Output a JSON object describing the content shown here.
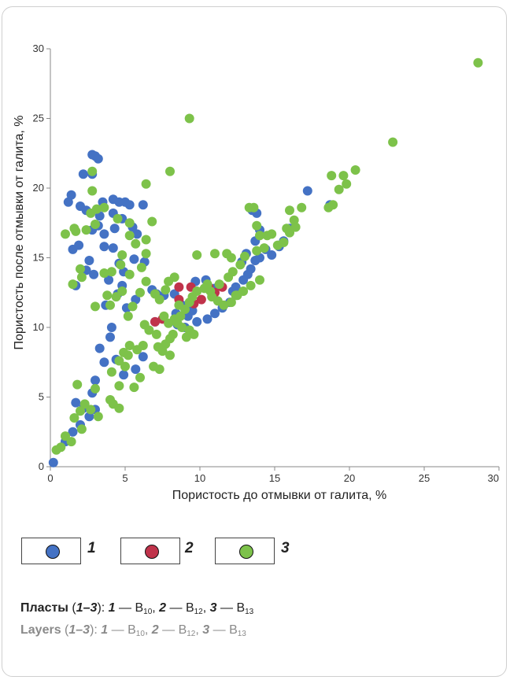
{
  "chart_data": {
    "type": "scatter",
    "xlabel": "Пористость до отмывки от галита, %",
    "ylabel": "Пористость после отмывки от галита, %",
    "xlim": [
      0,
      30
    ],
    "ylim": [
      0,
      30
    ],
    "xticks": [
      "0",
      "5",
      "10",
      "15",
      "20",
      "25",
      "30"
    ],
    "yticks": [
      "0",
      "5",
      "10",
      "15",
      "20",
      "25",
      "30"
    ],
    "grid": false,
    "series": [
      {
        "name": "1",
        "color": "#4472c4",
        "points": [
          [
            0.2,
            0.3
          ],
          [
            1.0,
            1.8
          ],
          [
            1.5,
            2.5
          ],
          [
            2.0,
            3.0
          ],
          [
            1.7,
            4.6
          ],
          [
            2.2,
            4.2
          ],
          [
            2.6,
            3.6
          ],
          [
            3.0,
            4.1
          ],
          [
            2.8,
            5.3
          ],
          [
            3.0,
            6.2
          ],
          [
            3.6,
            7.5
          ],
          [
            3.3,
            8.5
          ],
          [
            4.1,
            10.0
          ],
          [
            4.0,
            9.3
          ],
          [
            3.7,
            11.6
          ],
          [
            4.5,
            12.4
          ],
          [
            4.8,
            13.0
          ],
          [
            5.1,
            11.4
          ],
          [
            4.4,
            7.7
          ],
          [
            4.9,
            6.6
          ],
          [
            5.7,
            7.0
          ],
          [
            6.2,
            7.9
          ],
          [
            2.8,
            22.4
          ],
          [
            3.0,
            22.3
          ],
          [
            3.2,
            22.1
          ],
          [
            2.2,
            21.0
          ],
          [
            2.8,
            21.0
          ],
          [
            1.4,
            19.5
          ],
          [
            1.2,
            19.0
          ],
          [
            2.0,
            18.7
          ],
          [
            2.4,
            18.4
          ],
          [
            3.3,
            18.0
          ],
          [
            3.5,
            19.0
          ],
          [
            4.2,
            19.2
          ],
          [
            4.6,
            19.0
          ],
          [
            5.0,
            19.0
          ],
          [
            5.3,
            18.8
          ],
          [
            6.2,
            18.8
          ],
          [
            4.2,
            18.2
          ],
          [
            4.8,
            17.8
          ],
          [
            3.2,
            17.3
          ],
          [
            2.8,
            17.0
          ],
          [
            3.6,
            16.7
          ],
          [
            4.3,
            17.1
          ],
          [
            5.5,
            17.2
          ],
          [
            5.8,
            16.7
          ],
          [
            1.5,
            15.6
          ],
          [
            1.9,
            15.9
          ],
          [
            2.6,
            14.8
          ],
          [
            2.4,
            14.1
          ],
          [
            3.6,
            15.8
          ],
          [
            4.2,
            15.7
          ],
          [
            4.6,
            14.6
          ],
          [
            4.9,
            14.0
          ],
          [
            5.6,
            14.9
          ],
          [
            6.3,
            14.7
          ],
          [
            1.7,
            13.0
          ],
          [
            3.9,
            13.4
          ],
          [
            2.9,
            13.8
          ],
          [
            6.8,
            12.7
          ],
          [
            7.1,
            12.4
          ],
          [
            7.6,
            12.3
          ],
          [
            8.3,
            12.4
          ],
          [
            8.8,
            11.6
          ],
          [
            9.2,
            11.6
          ],
          [
            9.5,
            11.2
          ],
          [
            9.7,
            13.3
          ],
          [
            10.4,
            13.4
          ],
          [
            11.0,
            12.8
          ],
          [
            8.4,
            11.0
          ],
          [
            9.2,
            10.8
          ],
          [
            8.5,
            10.2
          ],
          [
            9.0,
            10.0
          ],
          [
            9.8,
            10.4
          ],
          [
            10.5,
            10.6
          ],
          [
            11.0,
            11.0
          ],
          [
            11.5,
            11.4
          ],
          [
            12.0,
            11.8
          ],
          [
            12.2,
            12.6
          ],
          [
            12.4,
            12.9
          ],
          [
            12.9,
            13.4
          ],
          [
            13.2,
            13.8
          ],
          [
            13.4,
            14.2
          ],
          [
            12.8,
            14.7
          ],
          [
            13.1,
            15.3
          ],
          [
            13.7,
            14.8
          ],
          [
            14.0,
            15.0
          ],
          [
            14.4,
            15.6
          ],
          [
            14.8,
            15.2
          ],
          [
            15.3,
            15.8
          ],
          [
            15.6,
            16.2
          ],
          [
            13.7,
            16.2
          ],
          [
            13.5,
            18.4
          ],
          [
            13.8,
            18.2
          ],
          [
            14.0,
            17.0
          ],
          [
            16.0,
            17.1
          ],
          [
            17.2,
            19.8
          ],
          [
            18.7,
            18.8
          ],
          [
            7.0,
            10.4
          ],
          [
            5.7,
            12.0
          ]
        ]
      },
      {
        "name": "2",
        "color": "#c0334b",
        "points": [
          [
            7.0,
            10.4
          ],
          [
            7.5,
            10.6
          ],
          [
            8.6,
            12.9
          ],
          [
            9.4,
            12.9
          ],
          [
            8.6,
            12.0
          ],
          [
            9.6,
            11.7
          ],
          [
            10.1,
            12.0
          ],
          [
            11.0,
            12.5
          ],
          [
            11.5,
            12.9
          ],
          [
            10.6,
            12.9
          ]
        ]
      },
      {
        "name": "3",
        "color": "#7dc24a",
        "points": [
          [
            28.6,
            29.0
          ],
          [
            9.3,
            25.0
          ],
          [
            22.9,
            23.3
          ],
          [
            2.8,
            21.2
          ],
          [
            8.0,
            21.2
          ],
          [
            6.4,
            20.3
          ],
          [
            2.8,
            19.8
          ],
          [
            20.4,
            21.3
          ],
          [
            18.8,
            20.9
          ],
          [
            19.6,
            20.9
          ],
          [
            19.3,
            19.9
          ],
          [
            19.8,
            20.3
          ],
          [
            18.6,
            18.6
          ],
          [
            18.9,
            18.8
          ],
          [
            16.8,
            18.6
          ],
          [
            16.0,
            18.4
          ],
          [
            16.3,
            17.7
          ],
          [
            16.4,
            17.2
          ],
          [
            15.8,
            17.1
          ],
          [
            16.0,
            16.8
          ],
          [
            13.3,
            18.6
          ],
          [
            13.6,
            18.6
          ],
          [
            13.8,
            17.3
          ],
          [
            14.0,
            16.6
          ],
          [
            14.5,
            16.6
          ],
          [
            14.8,
            16.7
          ],
          [
            15.6,
            16.1
          ],
          [
            15.2,
            15.9
          ],
          [
            14.3,
            15.7
          ],
          [
            13.8,
            15.5
          ],
          [
            13.0,
            15.1
          ],
          [
            12.7,
            14.5
          ],
          [
            12.2,
            14.0
          ],
          [
            11.9,
            13.6
          ],
          [
            11.3,
            13.1
          ],
          [
            10.7,
            12.6
          ],
          [
            10.5,
            13.1
          ],
          [
            9.8,
            12.6
          ],
          [
            9.5,
            12.2
          ],
          [
            9.3,
            11.8
          ],
          [
            8.6,
            11.6
          ],
          [
            9.0,
            11.3
          ],
          [
            8.7,
            10.8
          ],
          [
            8.3,
            10.6
          ],
          [
            8.5,
            10.3
          ],
          [
            8.8,
            10.0
          ],
          [
            9.3,
            9.8
          ],
          [
            9.6,
            9.5
          ],
          [
            9.1,
            9.3
          ],
          [
            8.2,
            9.5
          ],
          [
            8.0,
            9.2
          ],
          [
            7.7,
            8.8
          ],
          [
            7.5,
            8.3
          ],
          [
            7.2,
            8.6
          ],
          [
            8.0,
            8.0
          ],
          [
            6.9,
            7.2
          ],
          [
            7.3,
            7.0
          ],
          [
            10.8,
            12.2
          ],
          [
            11.2,
            11.9
          ],
          [
            11.6,
            11.6
          ],
          [
            12.1,
            11.8
          ],
          [
            12.5,
            12.3
          ],
          [
            12.9,
            12.6
          ],
          [
            13.4,
            13.0
          ],
          [
            14.0,
            13.4
          ],
          [
            11.8,
            15.3
          ],
          [
            12.1,
            15.0
          ],
          [
            10.3,
            12.8
          ],
          [
            9.8,
            15.2
          ],
          [
            11.0,
            15.3
          ],
          [
            8.3,
            13.6
          ],
          [
            7.9,
            13.3
          ],
          [
            7.7,
            12.7
          ],
          [
            7.3,
            12.0
          ],
          [
            7.0,
            12.4
          ],
          [
            6.4,
            13.3
          ],
          [
            6.1,
            14.3
          ],
          [
            6.4,
            15.3
          ],
          [
            5.7,
            16.0
          ],
          [
            5.3,
            16.6
          ],
          [
            4.8,
            15.2
          ],
          [
            4.7,
            14.5
          ],
          [
            4.8,
            12.6
          ],
          [
            4.4,
            12.2
          ],
          [
            4.0,
            11.6
          ],
          [
            3.8,
            12.3
          ],
          [
            3.6,
            13.9
          ],
          [
            4.1,
            14.0
          ],
          [
            5.3,
            13.8
          ],
          [
            5.5,
            11.5
          ],
          [
            5.2,
            10.8
          ],
          [
            6.3,
            10.2
          ],
          [
            6.6,
            9.8
          ],
          [
            6.2,
            8.7
          ],
          [
            5.8,
            8.4
          ],
          [
            4.9,
            8.2
          ],
          [
            5.2,
            8.0
          ],
          [
            5.0,
            7.2
          ],
          [
            4.6,
            7.6
          ],
          [
            4.1,
            6.8
          ],
          [
            6.0,
            6.4
          ],
          [
            5.6,
            5.7
          ],
          [
            4.6,
            5.8
          ],
          [
            4.2,
            4.5
          ],
          [
            4.6,
            4.2
          ],
          [
            4.0,
            4.8
          ],
          [
            3.0,
            5.6
          ],
          [
            3.2,
            3.6
          ],
          [
            2.7,
            4.1
          ],
          [
            2.3,
            4.5
          ],
          [
            2.0,
            4.0
          ],
          [
            1.6,
            3.5
          ],
          [
            2.1,
            2.7
          ],
          [
            1.4,
            1.8
          ],
          [
            1.0,
            2.2
          ],
          [
            0.7,
            1.4
          ],
          [
            0.4,
            1.2
          ],
          [
            1.8,
            5.9
          ],
          [
            2.1,
            13.6
          ],
          [
            2.0,
            14.2
          ],
          [
            1.5,
            13.1
          ],
          [
            1.7,
            16.9
          ],
          [
            1.0,
            16.7
          ],
          [
            1.6,
            17.1
          ],
          [
            2.4,
            17.0
          ],
          [
            3.0,
            17.4
          ],
          [
            3.1,
            18.5
          ],
          [
            2.7,
            18.2
          ],
          [
            3.6,
            18.6
          ],
          [
            4.5,
            17.8
          ],
          [
            5.3,
            17.5
          ],
          [
            6.8,
            17.6
          ],
          [
            6.4,
            16.3
          ],
          [
            3.0,
            11.5
          ],
          [
            7.6,
            10.8
          ],
          [
            7.9,
            10.3
          ],
          [
            7.1,
            9.5
          ],
          [
            5.3,
            8.7
          ],
          [
            6.0,
            12.5
          ],
          [
            12.4,
            12.3
          ]
        ]
      }
    ]
  },
  "legend": [
    {
      "label": "1",
      "color": "#4472c4"
    },
    {
      "label": "2",
      "color": "#c0334b"
    },
    {
      "label": "3",
      "color": "#7dc24a"
    }
  ],
  "caption": {
    "ru": {
      "label": "Пласты",
      "open": " (",
      "range": "1–3",
      "close": "): ",
      "i1": "1",
      "dash1": " — В",
      "s1": "10",
      "sep1": ", ",
      "i2": "2",
      "dash2": " — В",
      "s2": "12",
      "sep2": ", ",
      "i3": "3",
      "dash3": " — В",
      "s3": "13"
    },
    "en": {
      "label": "Layers",
      "open": " (",
      "range": "1–3",
      "close": "): ",
      "i1": "1",
      "dash1": " — B",
      "s1": "10",
      "sep1": ", ",
      "i2": "2",
      "dash2": " — B",
      "s2": "12",
      "sep2": ", ",
      "i3": "3",
      "dash3": " — B",
      "s3": "13"
    }
  }
}
